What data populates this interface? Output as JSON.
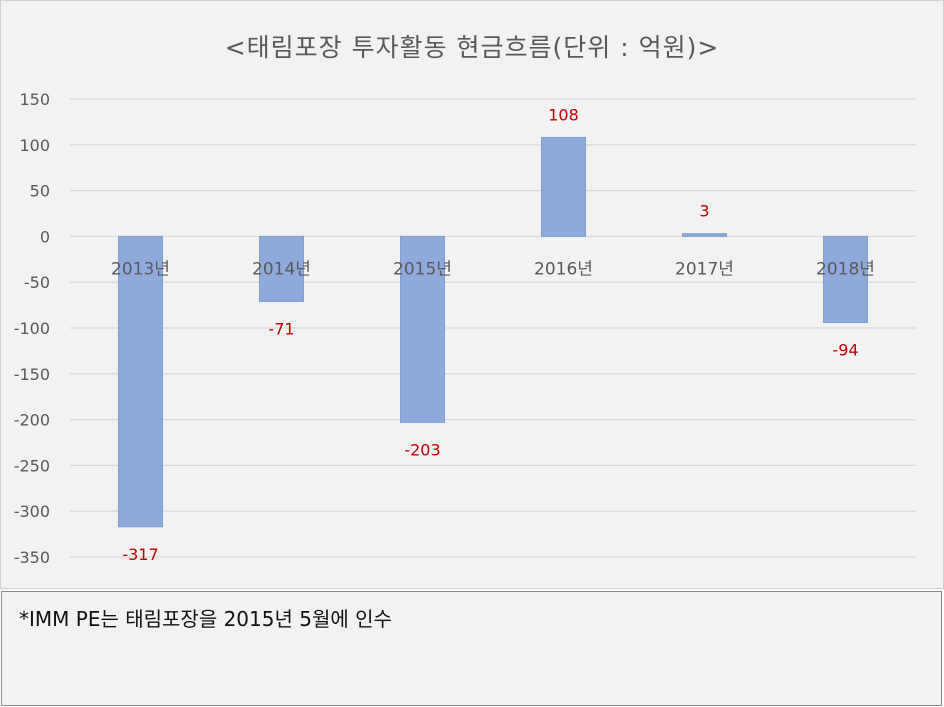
{
  "chart_data": {
    "type": "bar",
    "title": "<태림포장 투자활동 현금흐름(단위 : 억원)>",
    "categories": [
      "2013년",
      "2014년",
      "2015년",
      "2016년",
      "2017년",
      "2018년"
    ],
    "values": [
      -317,
      -71,
      -203,
      108,
      3,
      -94
    ],
    "data_labels": [
      "-317",
      "-71",
      "-203",
      "108",
      "3",
      "-94"
    ],
    "ylim": [
      -350,
      150
    ],
    "yticks": [
      150,
      100,
      50,
      0,
      -50,
      -100,
      -150,
      -200,
      -250,
      -300,
      -350
    ],
    "grid": true,
    "bar_color": "#8eaadb",
    "label_color": "#c00000"
  },
  "note": {
    "text": "*IMM PE는 태림포장을 2015년 5월에 인수"
  }
}
